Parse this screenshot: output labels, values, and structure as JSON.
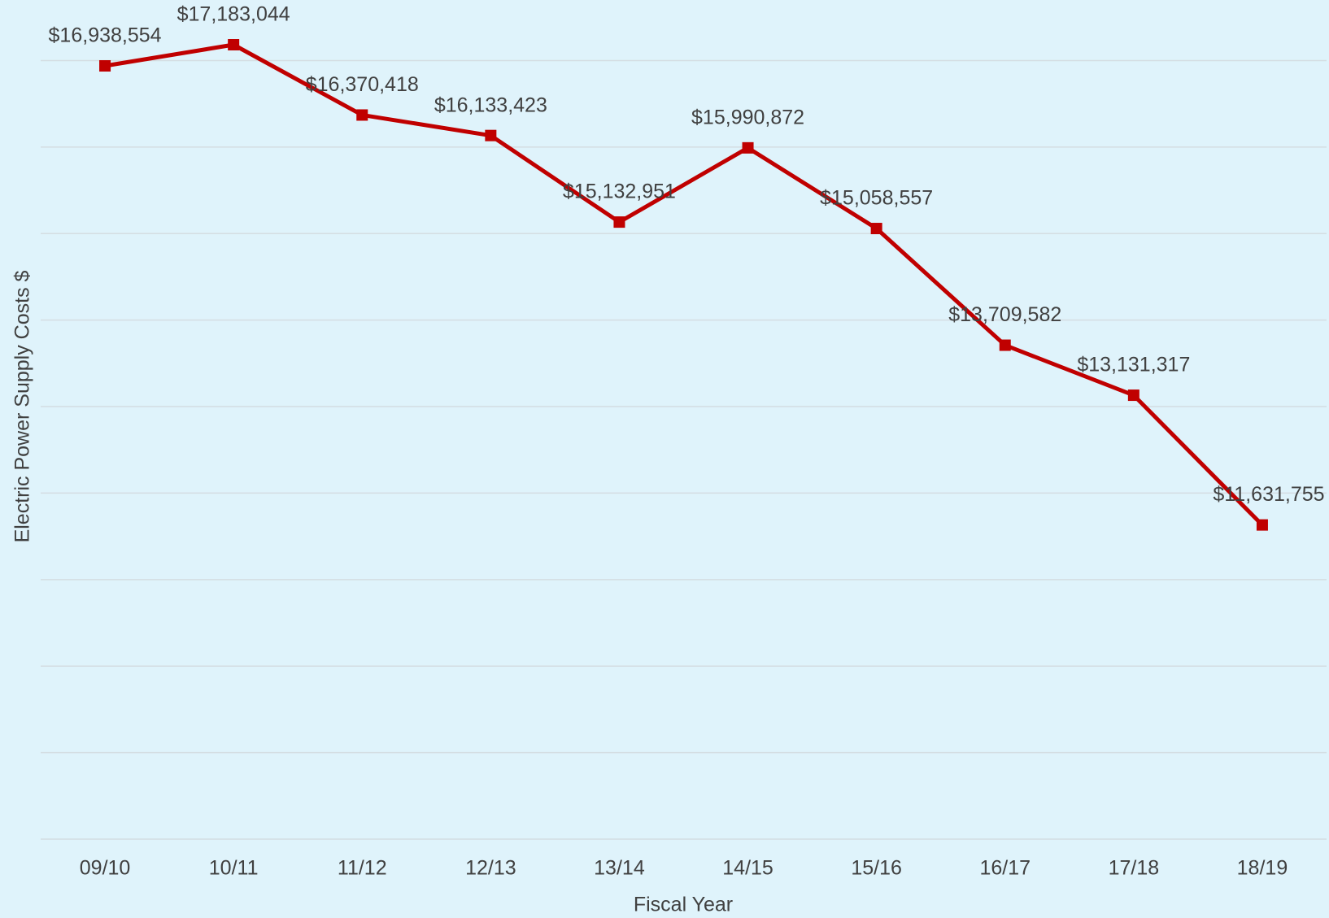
{
  "chart_data": {
    "type": "line",
    "x_label": "Fiscal Year",
    "y_label": "Electric Power Supply Costs $",
    "categories": [
      "09/10",
      "10/11",
      "11/12",
      "12/13",
      "13/14",
      "14/15",
      "15/16",
      "16/17",
      "17/18",
      "18/19"
    ],
    "series": [
      {
        "name": "Electric Power Supply Costs",
        "color": "#c00000",
        "values": [
          16938554,
          17183044,
          16370418,
          16133423,
          15132951,
          15990872,
          15058557,
          13709582,
          13131317,
          11631755
        ],
        "value_labels": [
          "$16,938,554",
          "$17,183,044",
          "$16,370,418",
          "$16,133,423",
          "$15,132,951",
          "$15,990,872",
          "$15,058,557",
          "$13,709,582",
          "$13,131,317",
          "$11,631,755"
        ]
      }
    ],
    "ylim": [
      8000000,
      17700000
    ],
    "yticks": [
      8000000,
      9000000,
      10000000,
      11000000,
      12000000,
      13000000,
      14000000,
      15000000,
      16000000,
      17000000
    ],
    "grid": true
  }
}
